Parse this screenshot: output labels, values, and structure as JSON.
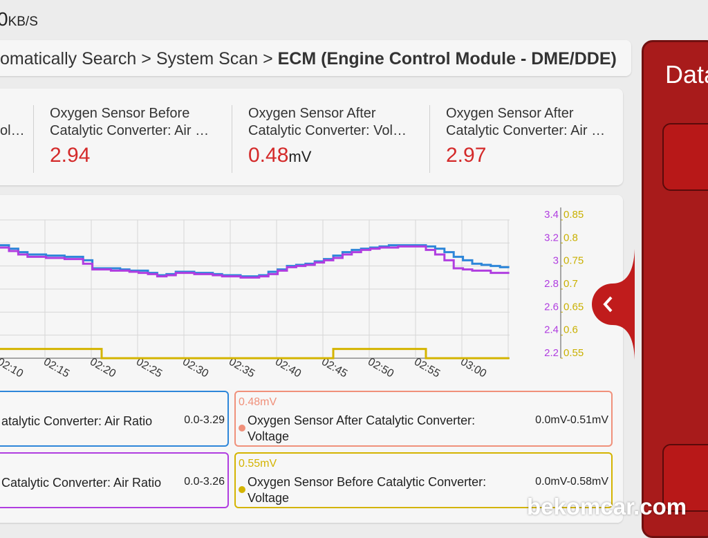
{
  "status": {
    "speed": "0",
    "unit": "KB/S"
  },
  "breadcrumb": {
    "items": [
      "omatically Search",
      "System Scan"
    ],
    "separator": ">",
    "current": "ECM (Engine Control Module - DME/DDE)"
  },
  "cards": [
    {
      "label": "ol…"
    },
    {
      "label": "Oxygen Sensor Before Catalytic Converter: Air …",
      "value": 2.94
    },
    {
      "label": "Oxygen Sensor After Catalytic Converter: Vol…",
      "value": 0.48,
      "unit": "mV"
    },
    {
      "label": "Oxygen Sensor After Catalytic Converter: Air …",
      "value": 2.97
    }
  ],
  "chart_data": {
    "type": "line",
    "categories": [
      null,
      "02:10",
      null,
      null,
      null,
      null,
      "02:15",
      null,
      null,
      null,
      null,
      "02:20",
      null,
      null,
      null,
      null,
      "02:25",
      null,
      null,
      null,
      null,
      "02:30",
      null,
      null,
      null,
      null,
      "02:35",
      null,
      null,
      null,
      null,
      "02:40",
      null,
      null,
      null,
      null,
      "02:45",
      null,
      null,
      null,
      null,
      "02:50",
      null,
      null,
      null,
      null,
      "02:55",
      null,
      null,
      null,
      null,
      "03:00",
      null,
      null,
      null
    ],
    "ylim": [
      2.2,
      3.4
    ],
    "yticks": [
      2.2,
      2.4,
      2.6,
      2.8,
      3,
      3.2,
      3.4
    ],
    "ytick_color": "#b03de0",
    "y2lim": [
      0.55,
      0.85
    ],
    "y2ticks": [
      0.55,
      0.6,
      0.65,
      0.7,
      0.75,
      0.8,
      0.85
    ],
    "y2tick_color": "#c9b000",
    "grid": true,
    "series": [
      {
        "name": "atalytic Converter: Air Ratio",
        "color": "#2d86d9",
        "range": "0.0-3.29",
        "values": [
          3.18,
          3.15,
          3.12,
          3.1,
          3.1,
          3.09,
          3.09,
          3.08,
          3.08,
          3.05,
          2.98,
          2.98,
          2.98,
          2.97,
          2.96,
          2.96,
          2.94,
          2.92,
          2.93,
          2.95,
          2.95,
          2.94,
          2.94,
          2.93,
          2.92,
          2.92,
          2.91,
          2.91,
          2.92,
          2.95,
          2.97,
          3.0,
          3.01,
          3.02,
          3.04,
          3.06,
          3.09,
          3.12,
          3.14,
          3.15,
          3.16,
          3.17,
          3.18,
          3.18,
          3.18,
          3.18,
          3.17,
          3.15,
          3.12,
          3.08,
          3.05,
          3.02,
          3.01,
          3.0,
          2.99
        ]
      },
      {
        "name": "Catalytic Converter: Air Ratio",
        "color": "#b03de0",
        "range": "0.0-3.26",
        "values": [
          3.16,
          3.13,
          3.1,
          3.08,
          3.08,
          3.07,
          3.07,
          3.06,
          3.06,
          3.02,
          2.97,
          2.97,
          2.96,
          2.96,
          2.95,
          2.94,
          2.93,
          2.91,
          2.92,
          2.94,
          2.94,
          2.93,
          2.93,
          2.92,
          2.91,
          2.91,
          2.9,
          2.9,
          2.91,
          2.93,
          2.96,
          2.99,
          3.0,
          3.01,
          3.03,
          3.05,
          3.07,
          3.1,
          3.12,
          3.14,
          3.15,
          3.16,
          3.16,
          3.17,
          3.17,
          3.17,
          3.14,
          3.1,
          3.05,
          2.98,
          2.97,
          2.96,
          2.96,
          2.94,
          2.94
        ]
      },
      {
        "name": "Oxygen Sensor After Catalytic Converter: Voltage",
        "color": "#f0907a",
        "range": "0.0mV-0.51mV",
        "current": "0.48mV"
      },
      {
        "name": "Oxygen Sensor Before Catalytic Converter: Voltage",
        "color": "#d4b400",
        "range": "0.0mV-0.58mV",
        "current": "0.55mV",
        "axis": "y2",
        "values": [
          0.57,
          0.57,
          0.57,
          0.57,
          0.57,
          0.57,
          0.57,
          0.57,
          0.57,
          0.57,
          0.57,
          0.55,
          0.55,
          0.55,
          0.55,
          0.55,
          0.55,
          0.55,
          0.55,
          0.55,
          0.55,
          0.55,
          0.55,
          0.55,
          0.55,
          0.55,
          0.55,
          0.55,
          0.55,
          0.55,
          0.55,
          0.55,
          0.55,
          0.55,
          0.55,
          0.55,
          0.57,
          0.57,
          0.57,
          0.57,
          0.57,
          0.57,
          0.57,
          0.57,
          0.57,
          0.57,
          0.55,
          0.55,
          0.55,
          0.55,
          0.55,
          0.55,
          0.55,
          0.55,
          0.55
        ]
      }
    ]
  },
  "side_panel": {
    "title": "Data"
  },
  "watermark": "bekomcar.com"
}
